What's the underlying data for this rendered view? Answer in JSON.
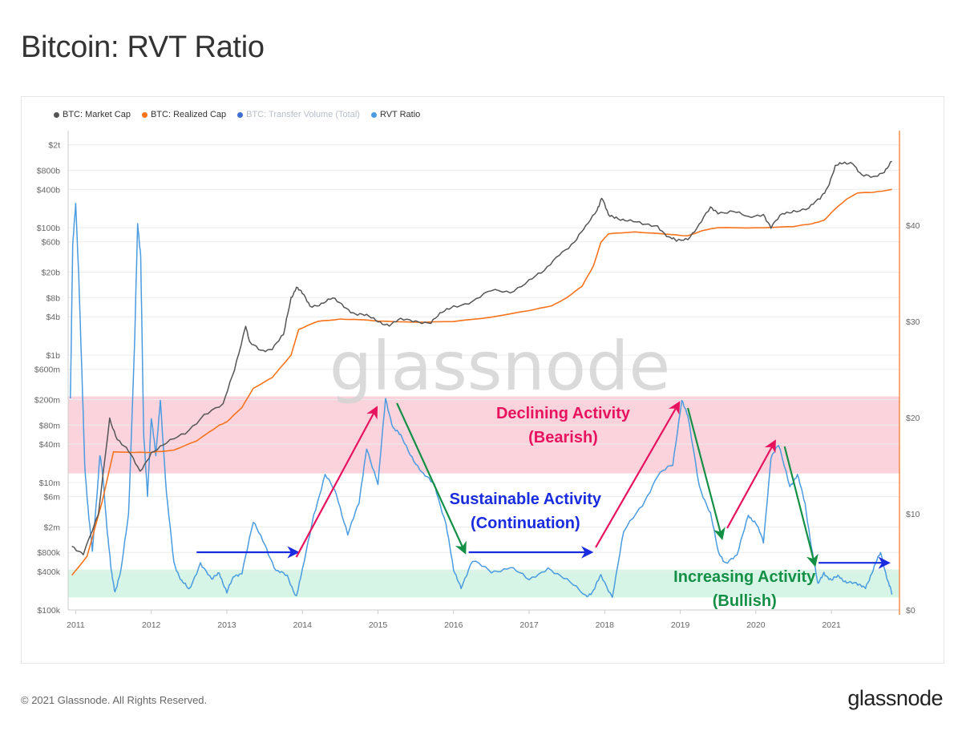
{
  "page": {
    "title": "Bitcoin: RVT Ratio",
    "copyright": "© 2021 Glassnode. All Rights Reserved.",
    "logo": "glassnode",
    "watermark": "glassnode"
  },
  "chart_data": {
    "type": "line",
    "title": "Bitcoin: RVT Ratio",
    "legend_position": "top-left",
    "grid": true,
    "colors": {
      "market_cap": "#555555",
      "realized_cap": "#f7731c",
      "transfer_volume": "#3d6fd1",
      "rvt": "#4a9be0",
      "bearish_band": "#fbd3dd",
      "bullish_band": "#d6f5e6",
      "declining": "#e8135f",
      "sustainable": "#1a2ce0",
      "increasing": "#149046"
    },
    "legend": [
      {
        "name": "BTC: Market Cap",
        "color": "#555555",
        "faded": false
      },
      {
        "name": "BTC: Realized Cap",
        "color": "#f7731c",
        "faded": false
      },
      {
        "name": "BTC: Transfer Volume (Total)",
        "color": "#3d6fd1",
        "faded": true
      },
      {
        "name": "RVT Ratio",
        "color": "#4a9be0",
        "faded": false
      }
    ],
    "x_axis": {
      "range": [
        2010.9,
        2021.9
      ],
      "ticks": [
        "2011",
        "2012",
        "2013",
        "2014",
        "2015",
        "2016",
        "2017",
        "2018",
        "2019",
        "2020",
        "2021"
      ],
      "tick_values": [
        2011,
        2012,
        2013,
        2014,
        2015,
        2016,
        2017,
        2018,
        2019,
        2020,
        2021
      ]
    },
    "left_axis": {
      "scale": "log",
      "range": [
        100000,
        2500000000000
      ],
      "tick_labels": [
        "$2t",
        "$800b",
        "$400b",
        "$100b",
        "$60b",
        "$20b",
        "$8b",
        "$4b",
        "$1b",
        "$600m",
        "$200m",
        "$80m",
        "$40m",
        "$10m",
        "$6m",
        "$2m",
        "$800k",
        "$400k",
        "$100k"
      ],
      "tick_values": [
        2000000000000,
        800000000000,
        400000000000,
        100000000000,
        60000000000,
        20000000000,
        8000000000,
        4000000000,
        1000000000,
        600000000,
        200000000,
        80000000,
        40000000,
        10000000,
        6000000,
        2000000,
        800000,
        400000,
        100000
      ]
    },
    "right_axis": {
      "scale": "linear",
      "range": [
        0,
        49
      ],
      "tick_labels": [
        "$0",
        "$10",
        "$20",
        "$30",
        "$40"
      ],
      "tick_values": [
        0,
        10,
        20,
        30,
        40
      ]
    },
    "bands": [
      {
        "name": "bearish",
        "axis": "right",
        "from": 14.2,
        "to": 22.2
      },
      {
        "name": "bullish",
        "axis": "right",
        "from": 1.3,
        "to": 4.2
      }
    ],
    "series": [
      {
        "name": "BTC: Market Cap",
        "axis": "left",
        "x": [
          2010.95,
          2011.1,
          2011.3,
          2011.45,
          2011.55,
          2011.7,
          2011.85,
          2012.0,
          2012.2,
          2012.45,
          2012.7,
          2012.95,
          2013.1,
          2013.25,
          2013.3,
          2013.45,
          2013.6,
          2013.75,
          2013.85,
          2013.92,
          2014.0,
          2014.1,
          2014.25,
          2014.4,
          2014.55,
          2014.7,
          2014.85,
          2015.0,
          2015.15,
          2015.3,
          2015.5,
          2015.7,
          2015.85,
          2016.0,
          2016.25,
          2016.5,
          2016.75,
          2017.0,
          2017.2,
          2017.4,
          2017.6,
          2017.75,
          2017.9,
          2017.96,
          2018.05,
          2018.15,
          2018.3,
          2018.5,
          2018.7,
          2018.85,
          2018.95,
          2019.1,
          2019.25,
          2019.4,
          2019.5,
          2019.7,
          2019.9,
          2020.1,
          2020.2,
          2020.35,
          2020.5,
          2020.7,
          2020.85,
          2020.95,
          2021.05,
          2021.15,
          2021.28,
          2021.4,
          2021.55,
          2021.7,
          2021.8
        ],
        "values": [
          1000000,
          800000,
          3000000,
          100000000,
          50000000,
          30000000,
          15000000,
          30000000,
          40000000,
          60000000,
          120000000,
          160000000,
          600000000,
          3000000000,
          1500000000,
          1200000000,
          1300000000,
          2000000000,
          8000000000,
          12000000000,
          9000000000,
          6000000000,
          6500000000,
          7500000000,
          6000000000,
          4500000000,
          4000000000,
          3500000000,
          3000000000,
          3500000000,
          3500000000,
          3300000000,
          4500000000,
          6000000000,
          7000000000,
          10000000000,
          10000000000,
          15000000000,
          20000000000,
          40000000000,
          60000000000,
          100000000000,
          200000000000,
          300000000000,
          150000000000,
          150000000000,
          130000000000,
          110000000000,
          110000000000,
          70000000000,
          60000000000,
          70000000000,
          110000000000,
          200000000000,
          180000000000,
          180000000000,
          140000000000,
          170000000000,
          100000000000,
          160000000000,
          190000000000,
          200000000000,
          280000000000,
          450000000000,
          900000000000,
          1000000000000,
          1100000000000,
          650000000000,
          600000000000,
          800000000000,
          1100000000000
        ]
      },
      {
        "name": "BTC: Realized Cap",
        "axis": "left",
        "x": [
          2010.95,
          2011.15,
          2011.35,
          2011.5,
          2011.7,
          2012.0,
          2012.3,
          2012.6,
          2012.9,
          2013.0,
          2013.2,
          2013.35,
          2013.6,
          2013.85,
          2013.95,
          2014.2,
          2014.5,
          2014.75,
          2015.0,
          2015.5,
          2016.0,
          2016.5,
          2017.0,
          2017.3,
          2017.5,
          2017.7,
          2017.85,
          2017.95,
          2018.05,
          2018.4,
          2018.8,
          2019.1,
          2019.3,
          2019.5,
          2020.0,
          2020.5,
          2020.75,
          2020.9,
          2021.05,
          2021.2,
          2021.35,
          2021.55,
          2021.8
        ],
        "values": [
          350000,
          700000,
          5000000,
          30000000,
          30000000,
          30000000,
          32000000,
          45000000,
          80000000,
          90000000,
          150000000,
          300000000,
          450000000,
          1000000000,
          2500000000,
          3400000000,
          3700000000,
          3600000000,
          3400000000,
          3300000000,
          3400000000,
          3900000000,
          5000000000,
          6000000000,
          8000000000,
          12000000000,
          25000000000,
          60000000000,
          80000000000,
          85000000000,
          80000000000,
          75000000000,
          90000000000,
          100000000000,
          100000000000,
          105000000000,
          115000000000,
          130000000000,
          200000000000,
          280000000000,
          350000000000,
          360000000000,
          400000000000
        ]
      },
      {
        "name": "RVT Ratio",
        "axis": "right",
        "x": [
          2010.93,
          2010.96,
          2011.0,
          2011.04,
          2011.08,
          2011.12,
          2011.17,
          2011.22,
          2011.28,
          2011.32,
          2011.36,
          2011.42,
          2011.47,
          2011.52,
          2011.6,
          2011.7,
          2011.78,
          2011.82,
          2011.86,
          2011.9,
          2011.95,
          2012.0,
          2012.06,
          2012.12,
          2012.2,
          2012.3,
          2012.4,
          2012.5,
          2012.65,
          2012.8,
          2012.9,
          2013.0,
          2013.1,
          2013.2,
          2013.35,
          2013.5,
          2013.65,
          2013.8,
          2013.92,
          2014.0,
          2014.15,
          2014.3,
          2014.45,
          2014.6,
          2014.75,
          2014.85,
          2015.0,
          2015.1,
          2015.2,
          2015.3,
          2015.45,
          2015.6,
          2015.75,
          2015.9,
          2016.0,
          2016.1,
          2016.25,
          2016.5,
          2016.75,
          2017.0,
          2017.25,
          2017.5,
          2017.75,
          2017.85,
          2017.95,
          2018.1,
          2018.25,
          2018.5,
          2018.7,
          2018.9,
          2019.02,
          2019.1,
          2019.25,
          2019.4,
          2019.5,
          2019.6,
          2019.75,
          2019.9,
          2020.0,
          2020.1,
          2020.2,
          2020.3,
          2020.45,
          2020.55,
          2020.65,
          2020.75,
          2020.82,
          2020.9,
          2021.0,
          2021.1,
          2021.2,
          2021.35,
          2021.45,
          2021.55,
          2021.65,
          2021.75,
          2021.8
        ],
        "values": [
          22,
          38,
          42,
          35,
          25,
          15,
          10,
          6,
          12,
          16,
          14,
          8,
          4,
          2,
          4,
          10,
          28,
          40,
          37,
          18,
          12,
          20,
          16,
          22,
          12,
          5,
          3,
          2,
          5,
          3,
          4,
          1.8,
          3.5,
          4,
          9,
          7,
          4,
          3.5,
          1.5,
          4,
          10,
          14,
          12,
          8,
          11,
          17,
          13,
          22,
          19,
          18,
          16,
          14,
          13,
          9,
          4,
          2.5,
          5,
          4,
          4.5,
          3,
          4.5,
          3,
          1.5,
          2,
          3.5,
          1.5,
          8,
          11,
          14,
          15,
          22,
          20,
          13,
          10,
          6,
          5,
          5.5,
          10,
          9,
          7,
          16,
          17,
          13,
          14,
          11,
          6,
          2.5,
          4,
          3,
          3.5,
          3,
          2.5,
          2.5,
          4,
          6,
          3,
          1.6
        ]
      }
    ],
    "annotations": [
      {
        "line1": "Declining Activity",
        "line2": "(Bearish)",
        "color": "#e8135f",
        "x": 2017.45,
        "y": 19.9
      },
      {
        "line1": "Sustainable Activity",
        "line2": "(Continuation)",
        "color": "#1a2ce0",
        "x": 2016.95,
        "y": 11.0
      },
      {
        "line1": "Increasing Activity",
        "line2": "(Bullish)",
        "color": "#149046",
        "x": 2019.85,
        "y": 2.9
      }
    ],
    "arrows": [
      {
        "kind": "sustainable",
        "x1": 2012.6,
        "y1": 6,
        "x2": 2013.93,
        "y2": 6
      },
      {
        "kind": "declining",
        "x1": 2013.92,
        "y1": 5.5,
        "x2": 2014.98,
        "y2": 21
      },
      {
        "kind": "increasing",
        "x1": 2015.25,
        "y1": 21.5,
        "x2": 2016.15,
        "y2": 6
      },
      {
        "kind": "sustainable",
        "x1": 2016.2,
        "y1": 6,
        "x2": 2017.82,
        "y2": 6
      },
      {
        "kind": "declining",
        "x1": 2017.88,
        "y1": 6.5,
        "x2": 2018.98,
        "y2": 21.5
      },
      {
        "kind": "increasing",
        "x1": 2019.1,
        "y1": 21,
        "x2": 2019.55,
        "y2": 7.5
      },
      {
        "kind": "declining",
        "x1": 2019.62,
        "y1": 8.5,
        "x2": 2020.25,
        "y2": 17.5
      },
      {
        "kind": "increasing",
        "x1": 2020.38,
        "y1": 17,
        "x2": 2020.78,
        "y2": 4.7
      },
      {
        "kind": "sustainable",
        "x1": 2020.83,
        "y1": 4.9,
        "x2": 2021.75,
        "y2": 4.9
      }
    ]
  }
}
